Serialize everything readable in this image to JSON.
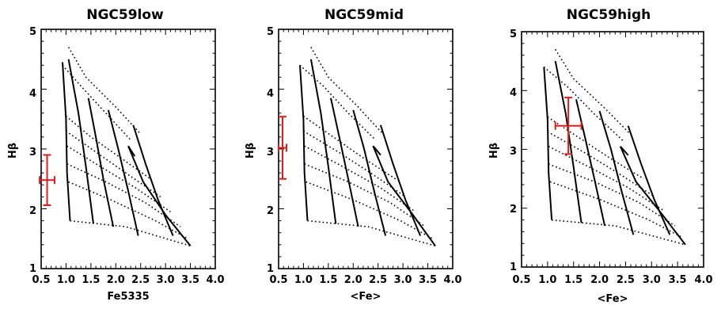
{
  "chart_data": [
    {
      "type": "line",
      "title": "NGC59low",
      "xlabel": "Fe5335",
      "ylabel": "Hβ",
      "xlim": [
        0.5,
        4.0
      ],
      "ylim": [
        1,
        5
      ],
      "xticks": [
        "0.5",
        "1.0",
        "1.5",
        "2.0",
        "2.5",
        "3.0",
        "3.5",
        "4.0"
      ],
      "yticks": [
        "1",
        "2",
        "3",
        "4",
        "5"
      ],
      "grid": false,
      "model_grid": {
        "solid_tracks": [
          [
            [
              0.93,
              4.45
            ],
            [
              1.0,
              3.5
            ],
            [
              1.02,
              2.6
            ],
            [
              1.08,
              1.8
            ]
          ],
          [
            [
              1.05,
              4.5
            ],
            [
              1.25,
              3.6
            ],
            [
              1.4,
              2.7
            ],
            [
              1.55,
              1.75
            ]
          ],
          [
            [
              1.45,
              3.85
            ],
            [
              1.6,
              3.2
            ],
            [
              1.75,
              2.5
            ],
            [
              1.95,
              1.7
            ]
          ],
          [
            [
              1.85,
              3.65
            ],
            [
              2.05,
              3.0
            ],
            [
              2.25,
              2.3
            ],
            [
              2.45,
              1.55
            ]
          ],
          [
            [
              2.35,
              3.4
            ],
            [
              2.6,
              2.75
            ],
            [
              2.85,
              2.15
            ],
            [
              3.15,
              1.55
            ]
          ],
          [
            [
              2.38,
              2.88
            ],
            [
              2.25,
              3.05
            ],
            [
              2.55,
              2.45
            ],
            [
              3.0,
              1.9
            ],
            [
              3.5,
              1.38
            ]
          ]
        ],
        "dotted_tracks": [
          [
            [
              1.05,
              4.7
            ],
            [
              1.4,
              4.2
            ],
            [
              2.0,
              3.7
            ],
            [
              2.5,
              3.25
            ]
          ],
          [
            [
              0.93,
              4.4
            ],
            [
              1.3,
              4.05
            ],
            [
              1.8,
              3.6
            ],
            [
              2.3,
              3.15
            ]
          ],
          [
            [
              1.0,
              3.55
            ],
            [
              1.5,
              3.2
            ],
            [
              2.1,
              2.85
            ],
            [
              2.7,
              2.5
            ]
          ],
          [
            [
              1.0,
              3.3
            ],
            [
              1.6,
              2.95
            ],
            [
              2.2,
              2.6
            ],
            [
              2.9,
              2.2
            ]
          ],
          [
            [
              1.02,
              3.05
            ],
            [
              1.7,
              2.7
            ],
            [
              2.4,
              2.35
            ],
            [
              3.1,
              1.95
            ]
          ],
          [
            [
              1.02,
              2.75
            ],
            [
              1.8,
              2.45
            ],
            [
              2.6,
              2.1
            ],
            [
              3.3,
              1.7
            ]
          ],
          [
            [
              1.05,
              2.45
            ],
            [
              1.9,
              2.15
            ],
            [
              2.8,
              1.8
            ],
            [
              3.45,
              1.5
            ]
          ],
          [
            [
              1.08,
              1.8
            ],
            [
              2.2,
              1.7
            ],
            [
              3.5,
              1.38
            ]
          ]
        ]
      },
      "measurement": {
        "x": 0.62,
        "y": 2.48,
        "xerr": 0.15,
        "yerr": 0.42,
        "color": "#e31a1c"
      }
    },
    {
      "type": "line",
      "title": "NGC59mid",
      "xlabel": "<Fe>",
      "ylabel": "Hβ",
      "xlim": [
        0.5,
        4.0
      ],
      "ylim": [
        1,
        5
      ],
      "xticks": [
        "0.5",
        "1.0",
        "1.5",
        "2.0",
        "2.5",
        "3.0",
        "3.5",
        "4.0"
      ],
      "yticks": [
        "1",
        "2",
        "3",
        "4",
        "5"
      ],
      "grid": false,
      "model_grid": {
        "solid_tracks": [
          [
            [
              0.93,
              4.4
            ],
            [
              1.0,
              3.5
            ],
            [
              1.02,
              2.6
            ],
            [
              1.08,
              1.8
            ]
          ],
          [
            [
              1.15,
              4.5
            ],
            [
              1.35,
              3.6
            ],
            [
              1.5,
              2.7
            ],
            [
              1.65,
              1.75
            ]
          ],
          [
            [
              1.55,
              3.85
            ],
            [
              1.72,
              3.2
            ],
            [
              1.9,
              2.5
            ],
            [
              2.1,
              1.7
            ]
          ],
          [
            [
              2.0,
              3.65
            ],
            [
              2.22,
              3.0
            ],
            [
              2.42,
              2.3
            ],
            [
              2.65,
              1.55
            ]
          ],
          [
            [
              2.55,
              3.4
            ],
            [
              2.8,
              2.75
            ],
            [
              3.05,
              2.15
            ],
            [
              3.35,
              1.55
            ]
          ],
          [
            [
              2.55,
              2.9
            ],
            [
              2.4,
              3.05
            ],
            [
              2.7,
              2.45
            ],
            [
              3.2,
              1.9
            ],
            [
              3.65,
              1.38
            ]
          ]
        ],
        "dotted_tracks": [
          [
            [
              1.15,
              4.7
            ],
            [
              1.5,
              4.2
            ],
            [
              2.1,
              3.7
            ],
            [
              2.6,
              3.25
            ]
          ],
          [
            [
              0.93,
              4.4
            ],
            [
              1.4,
              4.05
            ],
            [
              1.9,
              3.6
            ],
            [
              2.45,
              3.15
            ]
          ],
          [
            [
              1.0,
              3.55
            ],
            [
              1.6,
              3.2
            ],
            [
              2.2,
              2.85
            ],
            [
              2.85,
              2.5
            ]
          ],
          [
            [
              1.0,
              3.3
            ],
            [
              1.7,
              2.95
            ],
            [
              2.35,
              2.6
            ],
            [
              3.05,
              2.2
            ]
          ],
          [
            [
              1.02,
              3.05
            ],
            [
              1.8,
              2.7
            ],
            [
              2.55,
              2.35
            ],
            [
              3.25,
              1.95
            ]
          ],
          [
            [
              1.02,
              2.75
            ],
            [
              1.9,
              2.45
            ],
            [
              2.75,
              2.1
            ],
            [
              3.45,
              1.7
            ]
          ],
          [
            [
              1.05,
              2.45
            ],
            [
              2.0,
              2.15
            ],
            [
              2.95,
              1.8
            ],
            [
              3.6,
              1.5
            ]
          ],
          [
            [
              1.08,
              1.8
            ],
            [
              2.3,
              1.7
            ],
            [
              3.65,
              1.38
            ]
          ]
        ]
      },
      "measurement": {
        "x": 0.58,
        "y": 3.02,
        "xerr": 0.08,
        "yerr": 0.52,
        "color": "#e31a1c"
      }
    },
    {
      "type": "line",
      "title": "NGC59high",
      "xlabel": "<Fe>",
      "ylabel": "Hβ",
      "xlim": [
        0.5,
        4.0
      ],
      "ylim": [
        1,
        5
      ],
      "xticks": [
        "0.5",
        "1.0",
        "1.5",
        "2.0",
        "2.5",
        "3.0",
        "3.5",
        "4.0"
      ],
      "yticks": [
        "1",
        "2",
        "3",
        "4",
        "5"
      ],
      "grid": false,
      "model_grid": {
        "solid_tracks": [
          [
            [
              0.93,
              4.4
            ],
            [
              1.0,
              3.5
            ],
            [
              1.02,
              2.6
            ],
            [
              1.08,
              1.8
            ]
          ],
          [
            [
              1.15,
              4.5
            ],
            [
              1.35,
              3.6
            ],
            [
              1.5,
              2.7
            ],
            [
              1.65,
              1.75
            ]
          ],
          [
            [
              1.55,
              3.85
            ],
            [
              1.72,
              3.2
            ],
            [
              1.9,
              2.5
            ],
            [
              2.1,
              1.7
            ]
          ],
          [
            [
              2.0,
              3.65
            ],
            [
              2.22,
              3.0
            ],
            [
              2.42,
              2.3
            ],
            [
              2.65,
              1.55
            ]
          ],
          [
            [
              2.55,
              3.4
            ],
            [
              2.8,
              2.75
            ],
            [
              3.05,
              2.15
            ],
            [
              3.35,
              1.55
            ]
          ],
          [
            [
              2.55,
              2.9
            ],
            [
              2.4,
              3.05
            ],
            [
              2.7,
              2.45
            ],
            [
              3.2,
              1.9
            ],
            [
              3.65,
              1.38
            ]
          ]
        ],
        "dotted_tracks": [
          [
            [
              1.15,
              4.7
            ],
            [
              1.5,
              4.2
            ],
            [
              2.1,
              3.7
            ],
            [
              2.6,
              3.25
            ]
          ],
          [
            [
              0.93,
              4.4
            ],
            [
              1.4,
              4.05
            ],
            [
              1.9,
              3.6
            ],
            [
              2.45,
              3.15
            ]
          ],
          [
            [
              1.0,
              3.55
            ],
            [
              1.6,
              3.2
            ],
            [
              2.2,
              2.85
            ],
            [
              2.85,
              2.5
            ]
          ],
          [
            [
              1.0,
              3.3
            ],
            [
              1.7,
              2.95
            ],
            [
              2.35,
              2.6
            ],
            [
              3.05,
              2.2
            ]
          ],
          [
            [
              1.02,
              3.05
            ],
            [
              1.8,
              2.7
            ],
            [
              2.55,
              2.35
            ],
            [
              3.25,
              1.95
            ]
          ],
          [
            [
              1.02,
              2.75
            ],
            [
              1.9,
              2.45
            ],
            [
              2.75,
              2.1
            ],
            [
              3.45,
              1.7
            ]
          ],
          [
            [
              1.05,
              2.45
            ],
            [
              2.0,
              2.15
            ],
            [
              2.95,
              1.8
            ],
            [
              3.6,
              1.5
            ]
          ],
          [
            [
              1.08,
              1.8
            ],
            [
              2.3,
              1.7
            ],
            [
              3.65,
              1.38
            ]
          ]
        ]
      },
      "measurement": {
        "x": 1.4,
        "y": 3.4,
        "xerr": 0.25,
        "yerr": 0.48,
        "color": "#e31a1c"
      }
    }
  ]
}
